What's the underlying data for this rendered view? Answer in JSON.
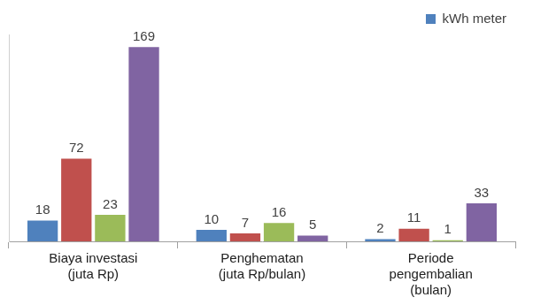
{
  "chart_data": {
    "type": "bar",
    "categories": [
      "Biaya investasi\n(juta Rp)",
      "Penghematan\n(juta Rp/bulan)",
      "Periode\npengembalian\n(bulan)"
    ],
    "series": [
      {
        "name": "kWh meter",
        "color": "#4f81bd",
        "values": [
          18,
          10,
          2
        ]
      },
      {
        "color": "#c0504d",
        "values": [
          72,
          7,
          11
        ]
      },
      {
        "color": "#9bbb59",
        "values": [
          23,
          16,
          1
        ]
      },
      {
        "color": "#8064a2",
        "values": [
          169,
          5,
          33
        ]
      }
    ],
    "ylim": [
      0,
      180
    ],
    "grid": false,
    "legend": "upper-right",
    "data_labels": true,
    "tick_labels": "x"
  }
}
